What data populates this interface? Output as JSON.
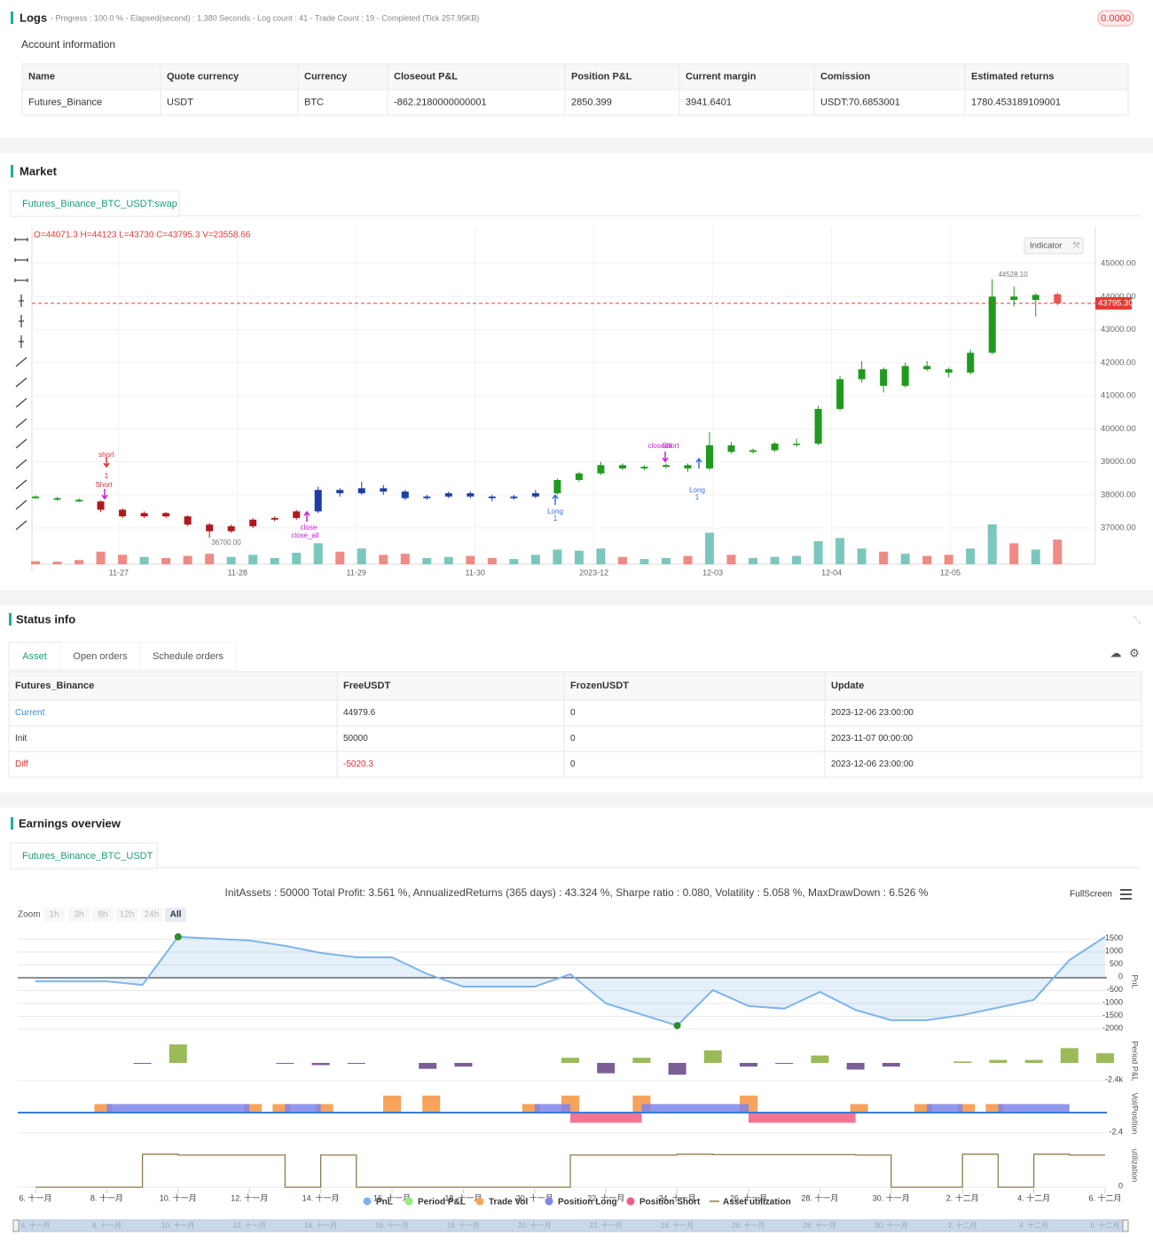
{
  "logs": {
    "title": "Logs",
    "summary": "- Progress : 100.0 % - Elapsed(second) : 1.380 Seconds - Log count : 41 - Trade Count : 19 - Completed (Tick 257.95KB)",
    "badge": "0.0000"
  },
  "account": {
    "title": "Account information",
    "columns": [
      "Name",
      "Quote currency",
      "Currency",
      "Closeout P&L",
      "Position P&L",
      "Current margin",
      "Comission",
      "Estimated returns"
    ],
    "rows": [
      [
        "Futures_Binance",
        "USDT",
        "BTC",
        "-862.2180000000001",
        "2850.399",
        "3941.6401",
        "USDT:70.6853001",
        "1780.453189109001"
      ]
    ]
  },
  "market": {
    "title": "Market",
    "tab": "Futures_Binance_BTC_USDT:swap",
    "chart": {
      "type": "candlestick",
      "ohlc_text": "O=44071.3 H=44123 L=43730 C=43795.3 V=23558.66",
      "indicator_button": "Indicator",
      "xlim": [
        26.27,
        35.22
      ],
      "xticks": [
        {
          "value": 27,
          "label": "11-27"
        },
        {
          "value": 28,
          "label": "11-28"
        },
        {
          "value": 29,
          "label": "11-29"
        },
        {
          "value": 30,
          "label": "11-30"
        },
        {
          "value": 31,
          "label": "2023-12"
        },
        {
          "value": 32,
          "label": "12-03"
        },
        {
          "value": 33,
          "label": "12-04"
        },
        {
          "value": 34,
          "label": "12-05"
        }
      ],
      "ylim": [
        35900,
        46128
      ],
      "yticks": [
        {
          "value": 37000,
          "label": "37000.00"
        },
        {
          "value": 38000,
          "label": "38000.00"
        },
        {
          "value": 39000,
          "label": "39000.00"
        },
        {
          "value": 40000,
          "label": "40000.00"
        },
        {
          "value": 41000,
          "label": "41000.00"
        },
        {
          "value": 42000,
          "label": "42000.00"
        },
        {
          "value": 43000,
          "label": "43000.00"
        },
        {
          "value": 44000,
          "label": "44000.00"
        },
        {
          "value": 45000,
          "label": "45000.00"
        }
      ],
      "price_line": {
        "value": 43795.3,
        "label": "43795.30",
        "color": "#e53935"
      },
      "volume_up_color": "#7cc7bd",
      "volume_down_color": "#f08a85",
      "candles": [
        {
          "t": 26.3,
          "o": 37950,
          "h": 37980,
          "l": 37880,
          "c": 37900,
          "v": 3000,
          "color": "#1f9a1f"
        },
        {
          "t": 26.483,
          "o": 37900,
          "h": 37940,
          "l": 37830,
          "c": 37850,
          "v": 2500,
          "color": "#1f9a1f"
        },
        {
          "t": 26.666,
          "o": 37850,
          "h": 37900,
          "l": 37780,
          "c": 37800,
          "v": 4000,
          "color": "#1f9a1f"
        },
        {
          "t": 26.849,
          "o": 37800,
          "h": 37830,
          "l": 37480,
          "c": 37550,
          "v": 12000,
          "color": "#b0191c"
        },
        {
          "t": 27.032,
          "o": 37550,
          "h": 37600,
          "l": 37300,
          "c": 37350,
          "v": 9000,
          "color": "#b0191c"
        },
        {
          "t": 27.215,
          "o": 37350,
          "h": 37500,
          "l": 37300,
          "c": 37450,
          "v": 7000,
          "color": "#b0191c"
        },
        {
          "t": 27.398,
          "o": 37450,
          "h": 37480,
          "l": 37300,
          "c": 37350,
          "v": 6000,
          "color": "#b0191c"
        },
        {
          "t": 27.581,
          "o": 37350,
          "h": 37380,
          "l": 37050,
          "c": 37100,
          "v": 8000,
          "color": "#b0191c"
        },
        {
          "t": 27.764,
          "o": 37100,
          "h": 37150,
          "l": 36700,
          "c": 36900,
          "v": 10000,
          "color": "#b0191c"
        },
        {
          "t": 27.947,
          "o": 36900,
          "h": 37100,
          "l": 36850,
          "c": 37050,
          "v": 7000,
          "color": "#b0191c"
        },
        {
          "t": 28.13,
          "o": 37050,
          "h": 37300,
          "l": 37000,
          "c": 37250,
          "v": 9000,
          "color": "#b0191c"
        },
        {
          "t": 28.313,
          "o": 37250,
          "h": 37350,
          "l": 37200,
          "c": 37300,
          "v": 6000,
          "color": "#b0191c"
        },
        {
          "t": 28.496,
          "o": 37300,
          "h": 37550,
          "l": 37250,
          "c": 37500,
          "v": 11000,
          "color": "#b0191c"
        },
        {
          "t": 28.679,
          "o": 37500,
          "h": 38250,
          "l": 37450,
          "c": 38150,
          "v": 20000,
          "color": "#1d3ea6"
        },
        {
          "t": 28.862,
          "o": 38150,
          "h": 38200,
          "l": 37950,
          "c": 38050,
          "v": 12000,
          "color": "#1d3ea6"
        },
        {
          "t": 29.045,
          "o": 38050,
          "h": 38400,
          "l": 38000,
          "c": 38200,
          "v": 15000,
          "color": "#1d3ea6"
        },
        {
          "t": 29.228,
          "o": 38200,
          "h": 38300,
          "l": 38000,
          "c": 38100,
          "v": 9000,
          "color": "#1d3ea6"
        },
        {
          "t": 29.411,
          "o": 38100,
          "h": 38150,
          "l": 37850,
          "c": 37900,
          "v": 10000,
          "color": "#1d3ea6"
        },
        {
          "t": 29.594,
          "o": 37900,
          "h": 38000,
          "l": 37850,
          "c": 37950,
          "v": 6000,
          "color": "#1d3ea6"
        },
        {
          "t": 29.777,
          "o": 37950,
          "h": 38100,
          "l": 37900,
          "c": 38050,
          "v": 7000,
          "color": "#1d3ea6"
        },
        {
          "t": 29.96,
          "o": 38050,
          "h": 38100,
          "l": 37900,
          "c": 37950,
          "v": 8000,
          "color": "#1d3ea6"
        },
        {
          "t": 30.143,
          "o": 37950,
          "h": 38000,
          "l": 37800,
          "c": 37900,
          "v": 6000,
          "color": "#1d3ea6"
        },
        {
          "t": 30.326,
          "o": 37900,
          "h": 38000,
          "l": 37850,
          "c": 37950,
          "v": 5000,
          "color": "#1d3ea6"
        },
        {
          "t": 30.509,
          "o": 37950,
          "h": 38150,
          "l": 37900,
          "c": 38050,
          "v": 9000,
          "color": "#1d3ea6"
        },
        {
          "t": 30.692,
          "o": 38050,
          "h": 38500,
          "l": 38000,
          "c": 38450,
          "v": 14000,
          "color": "#1f9a1f"
        },
        {
          "t": 30.875,
          "o": 38450,
          "h": 38700,
          "l": 38400,
          "c": 38650,
          "v": 13000,
          "color": "#1f9a1f"
        },
        {
          "t": 31.058,
          "o": 38650,
          "h": 39000,
          "l": 38600,
          "c": 38900,
          "v": 15000,
          "color": "#1f9a1f"
        },
        {
          "t": 31.241,
          "o": 38900,
          "h": 38950,
          "l": 38750,
          "c": 38800,
          "v": 7000,
          "color": "#1f9a1f"
        },
        {
          "t": 31.424,
          "o": 38800,
          "h": 38900,
          "l": 38750,
          "c": 38850,
          "v": 5000,
          "color": "#1f9a1f"
        },
        {
          "t": 31.607,
          "o": 38850,
          "h": 38950,
          "l": 38800,
          "c": 38900,
          "v": 6000,
          "color": "#1f9a1f"
        },
        {
          "t": 31.79,
          "o": 38900,
          "h": 38950,
          "l": 38700,
          "c": 38800,
          "v": 8000,
          "color": "#1f9a1f"
        },
        {
          "t": 31.973,
          "o": 38800,
          "h": 39900,
          "l": 38750,
          "c": 39500,
          "v": 30000,
          "color": "#1f9a1f"
        },
        {
          "t": 32.156,
          "o": 39500,
          "h": 39600,
          "l": 39250,
          "c": 39300,
          "v": 9000,
          "color": "#1f9a1f"
        },
        {
          "t": 32.339,
          "o": 39300,
          "h": 39400,
          "l": 39250,
          "c": 39350,
          "v": 6000,
          "color": "#1f9a1f"
        },
        {
          "t": 32.522,
          "o": 39350,
          "h": 39600,
          "l": 39300,
          "c": 39550,
          "v": 7000,
          "color": "#1f9a1f"
        },
        {
          "t": 32.705,
          "o": 39550,
          "h": 39700,
          "l": 39450,
          "c": 39550,
          "v": 8000,
          "color": "#1f9a1f"
        },
        {
          "t": 32.888,
          "o": 39550,
          "h": 40700,
          "l": 39500,
          "c": 40600,
          "v": 22000,
          "color": "#1f9a1f"
        },
        {
          "t": 33.071,
          "o": 40600,
          "h": 41600,
          "l": 40550,
          "c": 41500,
          "v": 25000,
          "color": "#1f9a1f"
        },
        {
          "t": 33.254,
          "o": 41500,
          "h": 42050,
          "l": 41400,
          "c": 41800,
          "v": 15000,
          "color": "#1f9a1f"
        },
        {
          "t": 33.437,
          "o": 41800,
          "h": 41850,
          "l": 41100,
          "c": 41300,
          "v": 12000,
          "color": "#1f9a1f"
        },
        {
          "t": 33.62,
          "o": 41300,
          "h": 42000,
          "l": 41250,
          "c": 41900,
          "v": 10000,
          "color": "#1f9a1f"
        },
        {
          "t": 33.803,
          "o": 41900,
          "h": 42050,
          "l": 41750,
          "c": 41800,
          "v": 8000,
          "color": "#1f9a1f"
        },
        {
          "t": 33.986,
          "o": 41800,
          "h": 41850,
          "l": 41550,
          "c": 41700,
          "v": 9000,
          "color": "#1f9a1f"
        },
        {
          "t": 34.169,
          "o": 41700,
          "h": 42400,
          "l": 41650,
          "c": 42300,
          "v": 15000,
          "color": "#1f9a1f"
        },
        {
          "t": 34.352,
          "o": 42300,
          "h": 44528.1,
          "l": 42250,
          "c": 44000,
          "v": 38000,
          "color": "#1f9a1f"
        },
        {
          "t": 34.535,
          "o": 44000,
          "h": 44300,
          "l": 43700,
          "c": 43900,
          "v": 20000,
          "color": "#1f9a1f"
        },
        {
          "t": 34.718,
          "o": 43900,
          "h": 44100,
          "l": 43400,
          "c": 44050,
          "v": 14000,
          "color": "#1f9a1f"
        },
        {
          "t": 34.901,
          "o": 44071.3,
          "h": 44123,
          "l": 43730,
          "c": 43795.3,
          "v": 23558.66,
          "color": "#ef5350"
        }
      ],
      "annotations": [
        "short",
        "1",
        "Short",
        "close",
        "close_all",
        "Long",
        "1",
        "closeall",
        "Short",
        "Long",
        "1",
        "36700.00",
        "44528.10"
      ]
    }
  },
  "status": {
    "title": "Status info",
    "tabs": [
      "Asset",
      "Open orders",
      "Schedule orders"
    ],
    "columns": [
      "Futures_Binance",
      "FreeUSDT",
      "FrozenUSDT",
      "Update"
    ],
    "rows": [
      [
        "Current",
        "44979.6",
        "0",
        "2023-12-06 23:00:00"
      ],
      [
        "Init",
        "50000",
        "0",
        "2023-11-07 00:00:00"
      ],
      [
        "Diff",
        "-5020.3",
        "0",
        "2023-12-06 23:00:00"
      ]
    ],
    "row_colors": [
      "#2f8fe0",
      "#333333",
      "#e0312f"
    ]
  },
  "earnings": {
    "title": "Earnings overview",
    "tab": "Futures_Binance_BTC_USDT",
    "summary": "InitAssets : 50000 Total Profit: 3.561 %, AnnualizedReturns (365 days) : 43.324 %, Sharpe ratio : 0.080, Volatility : 5.058 %, MaxDrawDown : 6.526 %",
    "fullscreen": "FullScreen",
    "zoom_label": "Zoom",
    "zoom_buttons": [
      "1h",
      "3h",
      "8h",
      "12h",
      "24h",
      "All"
    ],
    "chart": {
      "type": "multi-panel",
      "xlim": [
        6,
        36
      ],
      "xticks": [
        {
          "value": 6,
          "label": "6. 十一月"
        },
        {
          "value": 8,
          "label": "8. 十一月"
        },
        {
          "value": 10,
          "label": "10. 十一月"
        },
        {
          "value": 12,
          "label": "12. 十一月"
        },
        {
          "value": 14,
          "label": "14. 十一月"
        },
        {
          "value": 16,
          "label": "16. 十一月"
        },
        {
          "value": 18,
          "label": "18. 十一月"
        },
        {
          "value": 20,
          "label": "20. 十一月"
        },
        {
          "value": 22,
          "label": "22. 十一月"
        },
        {
          "value": 24,
          "label": "24. 十一月"
        },
        {
          "value": 26,
          "label": "26. 十一月"
        },
        {
          "value": 28,
          "label": "28. 十一月"
        },
        {
          "value": 30,
          "label": "30. 十一月"
        },
        {
          "value": 32,
          "label": "2. 十二月"
        },
        {
          "value": 34,
          "label": "4. 十二月"
        },
        {
          "value": 36,
          "label": "6. 十二月"
        }
      ],
      "pnl": {
        "type": "area",
        "axis_title": "PnL",
        "color": "#7cb5ec",
        "ylim": [
          -2172,
          1862
        ],
        "yticks": [
          -2000,
          -1500,
          -1000,
          -500,
          0,
          500,
          1000,
          1500
        ],
        "x": [
          6,
          8,
          9,
          10,
          12,
          13,
          14,
          15,
          16,
          17,
          18,
          19,
          20,
          21,
          22,
          24,
          25,
          26,
          27,
          28,
          29,
          30,
          31,
          32,
          33,
          34,
          35,
          36
        ],
        "values": [
          -140,
          -140,
          -280,
          1590,
          1448,
          1241,
          966,
          793,
          793,
          138,
          -345,
          -345,
          -345,
          140,
          -1000,
          -1860,
          -480,
          -1100,
          -1200,
          -550,
          -1250,
          -1650,
          -1650,
          -1450,
          -1160,
          -860,
          690,
          1590
        ]
      },
      "period_pnl": {
        "type": "bar",
        "axis_title": "Period P&L",
        "positive_color": "#9bbb59",
        "negative_color": "#7b5e96",
        "ylim": [
          -2880,
          3360
        ],
        "yticks": [
          {
            "value": -2400,
            "label": "-2.4k"
          }
        ],
        "x": [
          9,
          10,
          13,
          14,
          15,
          17,
          18,
          21,
          22,
          23,
          24,
          25,
          26,
          27,
          28,
          29,
          30,
          32,
          33,
          34,
          35,
          36
        ],
        "values": [
          -100,
          2500,
          -100,
          -300,
          -100,
          -800,
          -500,
          700,
          -1400,
          700,
          -1600,
          1700,
          -500,
          -50,
          1000,
          -900,
          -500,
          200,
          400,
          400,
          2000,
          1300
        ]
      },
      "vol_position": {
        "type": "bar-segments",
        "axis_title": "Vol/Position",
        "line_color": "#3a7bd5",
        "ylim": [
          -2.92,
          2.71
        ],
        "yticks": [
          {
            "value": -2.4,
            "label": "-2.4"
          }
        ],
        "trade_vol": {
          "color": "#f7a35c",
          "x": [
            7.9,
            12.1,
            12.9,
            14.1,
            16,
            17.1,
            19.9,
            21,
            23,
            26,
            29.1,
            30.9,
            32.1,
            32.9
          ],
          "values": [
            1,
            1,
            1,
            1,
            2,
            2,
            1,
            2,
            2,
            2,
            1,
            1,
            1,
            1
          ]
        },
        "position_long": {
          "color": "#8085e9",
          "segments": [
            {
              "start": 8,
              "end": 12,
              "value": 1
            },
            {
              "start": 13,
              "end": 14,
              "value": 1
            },
            {
              "start": 20,
              "end": 21,
              "value": 1
            },
            {
              "start": 23,
              "end": 26,
              "value": 1
            },
            {
              "start": 31,
              "end": 32,
              "value": 1
            },
            {
              "start": 33,
              "end": 35,
              "value": 1
            }
          ]
        },
        "position_short": {
          "color": "#f15c80",
          "segments": [
            {
              "start": 21,
              "end": 23,
              "value": -1.2
            },
            {
              "start": 26,
              "end": 29,
              "value": -1.2
            }
          ]
        }
      },
      "utilization": {
        "type": "step",
        "axis_title": "utilization",
        "color": "#8b7d4e",
        "ylim": [
          -0.04,
          1.1
        ],
        "yticks": [
          0
        ],
        "x": [
          6,
          9,
          10,
          13,
          14,
          15,
          21,
          24,
          25,
          29,
          30,
          32,
          33,
          34,
          35,
          36
        ],
        "values": [
          0,
          0.8,
          0.78,
          0,
          0.78,
          0,
          0.78,
          0.8,
          0.79,
          0.78,
          0,
          0.8,
          0,
          0.8,
          0.78,
          0.78
        ]
      },
      "legend": [
        {
          "name": "PnL",
          "color": "#7cb5ec"
        },
        {
          "name": "Period P&L",
          "color": "#90ed7d"
        },
        {
          "name": "Trade Vol",
          "color": "#f7a35c"
        },
        {
          "name": "Position Long",
          "color": "#8085e9"
        },
        {
          "name": "Position Short",
          "color": "#f15c80"
        },
        {
          "name": "Asset utilization",
          "color": "#8b7d4e"
        }
      ]
    }
  }
}
